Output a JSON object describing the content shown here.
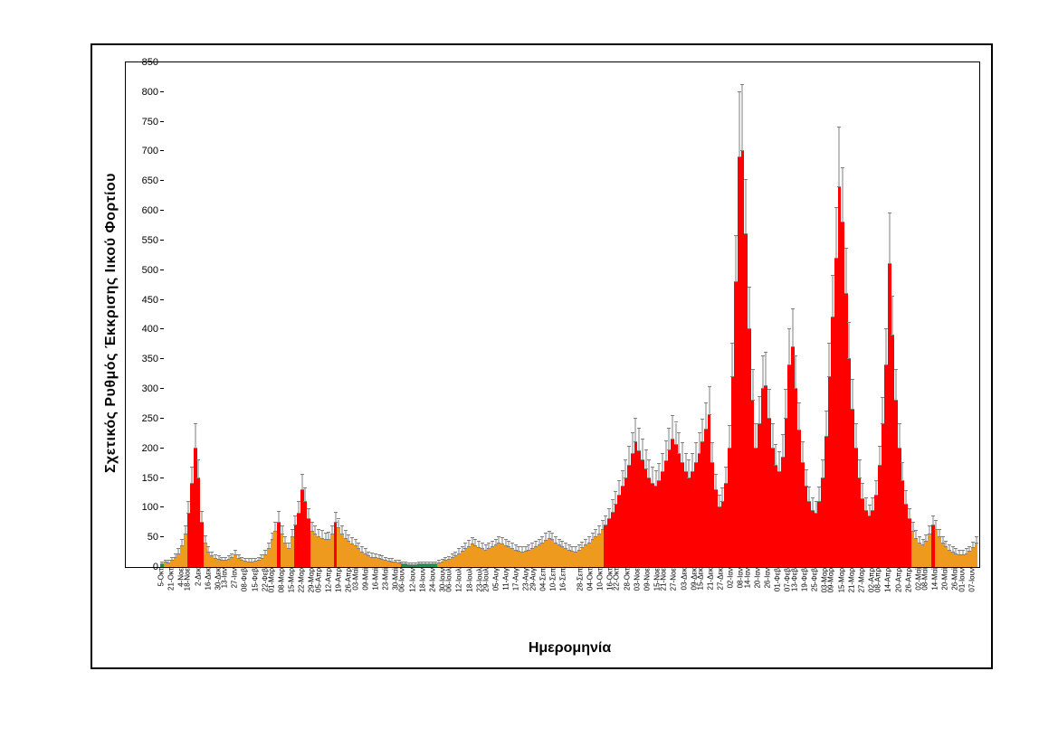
{
  "chart": {
    "type": "bar",
    "y_axis_title": "Σχετικός Ρυθμός Έκκρισης Ιικού Φορτίου",
    "x_axis_title": "Ημερομηνία",
    "title_fontsize_pt": 16,
    "label_fontsize_pt": 8,
    "tick_fontsize_pt": 11,
    "ylim": [
      0,
      850
    ],
    "ytick_step": 50,
    "background_color": "#ffffff",
    "border_color": "#000000",
    "error_bar_color": "#7f7f7f",
    "colors": {
      "red": "#ff0000",
      "orange": "#ed9a1f",
      "green": "#2e8b57"
    },
    "threshold_red": 70,
    "threshold_green": 5,
    "x_labels": [
      "5-Οκτ",
      "21-Οκτ",
      "4-Νοε",
      "18-Νοε",
      "2-Δεκ",
      "16-Δεκ",
      "30-Δεκ",
      "13-Ιαν",
      "27-Ιαν",
      "08-Φεβ",
      "15-Φεβ",
      "22-Φεβ",
      "01-Μαρ",
      "08-Μαρ",
      "15-Μαρ",
      "22-Μαρ",
      "29-Μαρ",
      "05-Απρ",
      "12-Απρ",
      "19-Απρ",
      "26-Απρ",
      "03-Μαϊ",
      "09-Μαϊ",
      "16-Μαϊ",
      "23-Μαϊ",
      "30-Μαϊ",
      "06-Ιουν",
      "12-Ιουν",
      "18-Ιουν",
      "24-Ιουν",
      "30-Ιουν",
      "06-Ιουλ",
      "12-Ιουλ",
      "18-Ιουλ",
      "23-Ιουλ",
      "29-Ιουλ",
      "05-Αυγ",
      "11-Αυγ",
      "17-Αυγ",
      "23-Αυγ",
      "29-Αυγ",
      "04-Σεπ",
      "10-Σεπ",
      "16-Σεπ",
      "22-Σεπ",
      "28-Σεπ",
      "04-Οκτ",
      "10-Οκτ",
      "16-Οκτ",
      "22-Οκτ",
      "28-Οκτ",
      "03-Νοε",
      "09-Νοε",
      "15-Νοε",
      "21-Νοε",
      "27-Νοε",
      "03-Δεκ",
      "09-Δεκ",
      "15-Δεκ",
      "21-Δεκ",
      "27-Δεκ",
      "02-Ιαν",
      "08-Ιαν",
      "14-Ιαν",
      "20-Ιαν",
      "26-Ιαν",
      "01-Φεβ",
      "07-Φεβ",
      "13-Φεβ",
      "19-Φεβ",
      "25-Φεβ",
      "03-Μαρ",
      "09-Μαρ",
      "15-Μαρ",
      "21-Μαρ",
      "27-Μαρ",
      "02-Απρ",
      "08-Απρ",
      "14-Απρ",
      "20-Απρ",
      "26-Απρ",
      "02-Μαϊ",
      "08-Μαϊ",
      "14-Μαϊ",
      "20-Μαϊ",
      "26-Μαϊ",
      "01-Ιουν",
      "07-Ιουν"
    ],
    "values": [
      5,
      7,
      6,
      10,
      15,
      22,
      35,
      55,
      90,
      140,
      200,
      150,
      75,
      40,
      25,
      18,
      14,
      12,
      10,
      10,
      12,
      15,
      20,
      14,
      10,
      9,
      8,
      8,
      9,
      10,
      14,
      20,
      30,
      45,
      60,
      75,
      55,
      40,
      30,
      50,
      70,
      90,
      130,
      110,
      80,
      60,
      55,
      50,
      48,
      45,
      46,
      55,
      75,
      65,
      55,
      48,
      42,
      38,
      35,
      30,
      25,
      22,
      18,
      16,
      15,
      14,
      12,
      10,
      9,
      8,
      7,
      6,
      5,
      4,
      3,
      3,
      3,
      4,
      5,
      5,
      4,
      4,
      5,
      6,
      8,
      10,
      12,
      15,
      18,
      22,
      26,
      30,
      34,
      38,
      35,
      32,
      30,
      28,
      30,
      33,
      36,
      40,
      38,
      35,
      33,
      30,
      28,
      26,
      25,
      26,
      28,
      30,
      33,
      36,
      40,
      44,
      48,
      45,
      40,
      36,
      33,
      30,
      28,
      26,
      25,
      28,
      32,
      36,
      40,
      45,
      50,
      55,
      62,
      70,
      80,
      92,
      105,
      120,
      135,
      150,
      170,
      190,
      210,
      195,
      180,
      165,
      150,
      140,
      135,
      145,
      160,
      178,
      196,
      215,
      205,
      190,
      175,
      160,
      150,
      160,
      175,
      190,
      210,
      232,
      256,
      175,
      130,
      100,
      110,
      140,
      200,
      320,
      480,
      690,
      700,
      560,
      400,
      280,
      200,
      240,
      300,
      305,
      250,
      200,
      170,
      160,
      185,
      250,
      340,
      370,
      300,
      230,
      175,
      135,
      110,
      95,
      90,
      110,
      150,
      220,
      320,
      420,
      520,
      640,
      580,
      460,
      350,
      265,
      200,
      150,
      115,
      95,
      85,
      95,
      120,
      170,
      240,
      340,
      510,
      390,
      280,
      200,
      145,
      105,
      80,
      60,
      48,
      40,
      36,
      42,
      55,
      70,
      62,
      50,
      40,
      33,
      28,
      25,
      22,
      20,
      20,
      22,
      26,
      32,
      40
    ],
    "errors": [
      3,
      4,
      4,
      5,
      6,
      8,
      10,
      14,
      20,
      28,
      40,
      30,
      18,
      12,
      8,
      7,
      6,
      6,
      5,
      5,
      6,
      6,
      7,
      6,
      5,
      5,
      5,
      5,
      5,
      5,
      6,
      7,
      9,
      12,
      15,
      18,
      14,
      11,
      9,
      13,
      16,
      20,
      26,
      23,
      18,
      15,
      14,
      13,
      13,
      12,
      12,
      14,
      17,
      15,
      14,
      13,
      12,
      11,
      10,
      9,
      8,
      8,
      7,
      7,
      6,
      6,
      6,
      5,
      5,
      5,
      4,
      4,
      3,
      3,
      3,
      3,
      3,
      3,
      3,
      3,
      3,
      3,
      3,
      4,
      4,
      5,
      5,
      6,
      7,
      8,
      8,
      9,
      10,
      11,
      10,
      10,
      9,
      9,
      9,
      10,
      10,
      11,
      11,
      10,
      10,
      9,
      9,
      8,
      8,
      8,
      9,
      9,
      10,
      10,
      11,
      12,
      12,
      12,
      11,
      10,
      10,
      9,
      9,
      8,
      8,
      9,
      9,
      10,
      11,
      12,
      13,
      14,
      15,
      16,
      18,
      20,
      22,
      24,
      27,
      30,
      33,
      36,
      40,
      38,
      35,
      32,
      30,
      28,
      27,
      29,
      31,
      34,
      37,
      40,
      38,
      36,
      33,
      31,
      30,
      31,
      33,
      36,
      39,
      43,
      47,
      34,
      26,
      21,
      23,
      28,
      38,
      56,
      78,
      110,
      112,
      92,
      70,
      52,
      40,
      46,
      55,
      56,
      48,
      40,
      35,
      33,
      37,
      48,
      60,
      64,
      55,
      45,
      36,
      28,
      24,
      21,
      20,
      24,
      30,
      42,
      56,
      70,
      85,
      100,
      92,
      76,
      62,
      50,
      40,
      30,
      25,
      21,
      19,
      21,
      25,
      33,
      45,
      60,
      85,
      66,
      52,
      40,
      30,
      23,
      18,
      15,
      13,
      11,
      10,
      11,
      14,
      16,
      15,
      13,
      11,
      10,
      9,
      8,
      8,
      7,
      7,
      8,
      8,
      9,
      11
    ]
  }
}
